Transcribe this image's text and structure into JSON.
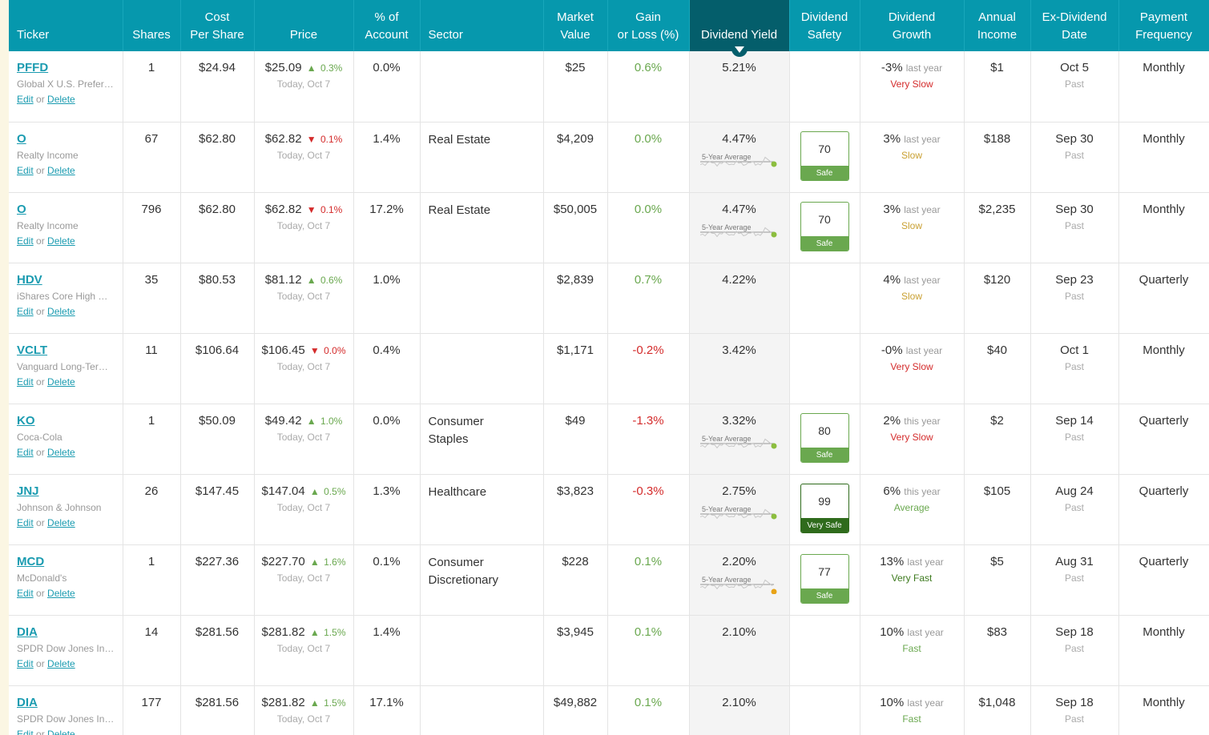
{
  "columns": [
    {
      "key": "ticker",
      "label": "Ticker",
      "align": "left"
    },
    {
      "key": "shares",
      "label": "Shares"
    },
    {
      "key": "cost",
      "label": "Cost\nPer Share"
    },
    {
      "key": "price",
      "label": "Price"
    },
    {
      "key": "pct",
      "label": "% of\nAccount"
    },
    {
      "key": "sector",
      "label": "Sector",
      "align": "left"
    },
    {
      "key": "mv",
      "label": "Market\nValue"
    },
    {
      "key": "gain",
      "label": "Gain\nor Loss (%)"
    },
    {
      "key": "yield",
      "label": "Dividend Yield",
      "sorted": true
    },
    {
      "key": "safety",
      "label": "Dividend\nSafety"
    },
    {
      "key": "growth",
      "label": "Dividend\nGrowth"
    },
    {
      "key": "income",
      "label": "Annual\nIncome"
    },
    {
      "key": "exdiv",
      "label": "Ex-Dividend\nDate"
    },
    {
      "key": "freq",
      "label": "Payment\nFrequency"
    }
  ],
  "edit_label": "Edit",
  "or_label": "or",
  "delete_label": "Delete",
  "avg_label": "5-Year Average",
  "rows": [
    {
      "ticker": "PFFD",
      "company": "Global X U.S. Prefer…",
      "shares": "1",
      "cost": "$24.94",
      "price": "$25.09",
      "change": "0.3%",
      "dir": "up",
      "date": "Today, Oct 7",
      "pct": "0.0%",
      "sector": "",
      "mv": "$25",
      "gain": "0.6%",
      "gain_sign": "pos",
      "yield": "5.21%",
      "safety": null,
      "growth": "-3%",
      "growth_period": "last year",
      "speed": "Very Slow",
      "speed_class": "veryslow",
      "income": "$1",
      "exdiv": "Oct 5",
      "exdiv_status": "Past",
      "freq": "Monthly"
    },
    {
      "ticker": "O",
      "company": "Realty Income",
      "shares": "67",
      "cost": "$62.80",
      "price": "$62.82",
      "change": "0.1%",
      "dir": "down",
      "date": "Today, Oct 7",
      "pct": "1.4%",
      "sector": "Real Estate",
      "mv": "$4,209",
      "gain": "0.0%",
      "gain_sign": "pos",
      "yield": "4.47%",
      "spark": "green",
      "safety": {
        "score": "70",
        "label": "Safe",
        "level": "safe"
      },
      "growth": "3%",
      "growth_period": "last year",
      "speed": "Slow",
      "speed_class": "slow",
      "income": "$188",
      "exdiv": "Sep 30",
      "exdiv_status": "Past",
      "freq": "Monthly"
    },
    {
      "ticker": "O",
      "company": "Realty Income",
      "shares": "796",
      "cost": "$62.80",
      "price": "$62.82",
      "change": "0.1%",
      "dir": "down",
      "date": "Today, Oct 7",
      "pct": "17.2%",
      "sector": "Real Estate",
      "mv": "$50,005",
      "gain": "0.0%",
      "gain_sign": "pos",
      "yield": "4.47%",
      "spark": "green",
      "safety": {
        "score": "70",
        "label": "Safe",
        "level": "safe"
      },
      "growth": "3%",
      "growth_period": "last year",
      "speed": "Slow",
      "speed_class": "slow",
      "income": "$2,235",
      "exdiv": "Sep 30",
      "exdiv_status": "Past",
      "freq": "Monthly"
    },
    {
      "ticker": "HDV",
      "company": "iShares Core High …",
      "shares": "35",
      "cost": "$80.53",
      "price": "$81.12",
      "change": "0.6%",
      "dir": "up",
      "date": "Today, Oct 7",
      "pct": "1.0%",
      "sector": "",
      "mv": "$2,839",
      "gain": "0.7%",
      "gain_sign": "pos",
      "yield": "4.22%",
      "safety": null,
      "growth": "4%",
      "growth_period": "last year",
      "speed": "Slow",
      "speed_class": "slow",
      "income": "$120",
      "exdiv": "Sep 23",
      "exdiv_status": "Past",
      "freq": "Quarterly"
    },
    {
      "ticker": "VCLT",
      "company": "Vanguard Long-Ter…",
      "shares": "11",
      "cost": "$106.64",
      "price": "$106.45",
      "change": "0.0%",
      "dir": "down",
      "date": "Today, Oct 7",
      "pct": "0.4%",
      "sector": "",
      "mv": "$1,171",
      "gain": "-0.2%",
      "gain_sign": "neg",
      "yield": "3.42%",
      "safety": null,
      "growth": "-0%",
      "growth_period": "last year",
      "speed": "Very Slow",
      "speed_class": "veryslow",
      "income": "$40",
      "exdiv": "Oct 1",
      "exdiv_status": "Past",
      "freq": "Monthly"
    },
    {
      "ticker": "KO",
      "company": "Coca-Cola",
      "shares": "1",
      "cost": "$50.09",
      "price": "$49.42",
      "change": "1.0%",
      "dir": "up",
      "date": "Today, Oct 7",
      "pct": "0.0%",
      "sector": "Consumer\nStaples",
      "mv": "$49",
      "gain": "-1.3%",
      "gain_sign": "neg",
      "yield": "3.32%",
      "spark": "green",
      "safety": {
        "score": "80",
        "label": "Safe",
        "level": "safe"
      },
      "growth": "2%",
      "growth_period": "this year",
      "speed": "Very Slow",
      "speed_class": "veryslow",
      "income": "$2",
      "exdiv": "Sep 14",
      "exdiv_status": "Past",
      "freq": "Quarterly"
    },
    {
      "ticker": "JNJ",
      "company": "Johnson & Johnson",
      "shares": "26",
      "cost": "$147.45",
      "price": "$147.04",
      "change": "0.5%",
      "dir": "up",
      "date": "Today, Oct 7",
      "pct": "1.3%",
      "sector": "Healthcare",
      "mv": "$3,823",
      "gain": "-0.3%",
      "gain_sign": "neg",
      "yield": "2.75%",
      "spark": "green",
      "safety": {
        "score": "99",
        "label": "Very Safe",
        "level": "verysafe"
      },
      "growth": "6%",
      "growth_period": "this year",
      "speed": "Average",
      "speed_class": "average",
      "income": "$105",
      "exdiv": "Aug 24",
      "exdiv_status": "Past",
      "freq": "Quarterly"
    },
    {
      "ticker": "MCD",
      "company": "McDonald's",
      "shares": "1",
      "cost": "$227.36",
      "price": "$227.70",
      "change": "1.6%",
      "dir": "up",
      "date": "Today, Oct 7",
      "pct": "0.1%",
      "sector": "Consumer\nDiscretionary",
      "mv": "$228",
      "gain": "0.1%",
      "gain_sign": "pos",
      "yield": "2.20%",
      "spark": "orange",
      "safety": {
        "score": "77",
        "label": "Safe",
        "level": "safe"
      },
      "growth": "13%",
      "growth_period": "last year",
      "speed": "Very Fast",
      "speed_class": "veryfast",
      "income": "$5",
      "exdiv": "Aug 31",
      "exdiv_status": "Past",
      "freq": "Quarterly"
    },
    {
      "ticker": "DIA",
      "company": "SPDR Dow Jones In…",
      "shares": "14",
      "cost": "$281.56",
      "price": "$281.82",
      "change": "1.5%",
      "dir": "up",
      "date": "Today, Oct 7",
      "pct": "1.4%",
      "sector": "",
      "mv": "$3,945",
      "gain": "0.1%",
      "gain_sign": "pos",
      "yield": "2.10%",
      "safety": null,
      "growth": "10%",
      "growth_period": "last year",
      "speed": "Fast",
      "speed_class": "fast",
      "income": "$83",
      "exdiv": "Sep 18",
      "exdiv_status": "Past",
      "freq": "Monthly"
    },
    {
      "ticker": "DIA",
      "company": "SPDR Dow Jones In…",
      "shares": "177",
      "cost": "$281.56",
      "price": "$281.82",
      "change": "1.5%",
      "dir": "up",
      "date": "Today, Oct 7",
      "pct": "17.1%",
      "sector": "",
      "mv": "$49,882",
      "gain": "0.1%",
      "gain_sign": "pos",
      "yield": "2.10%",
      "safety": null,
      "growth": "10%",
      "growth_period": "last year",
      "speed": "Fast",
      "speed_class": "fast",
      "income": "$1,048",
      "exdiv": "Sep 18",
      "exdiv_status": "Past",
      "freq": "Monthly"
    }
  ],
  "colors": {
    "header": "#0698ad",
    "sorted_header": "#045e6b",
    "up": "#6aa84f",
    "down": "#d42b2b",
    "link": "#1a9bb0"
  }
}
